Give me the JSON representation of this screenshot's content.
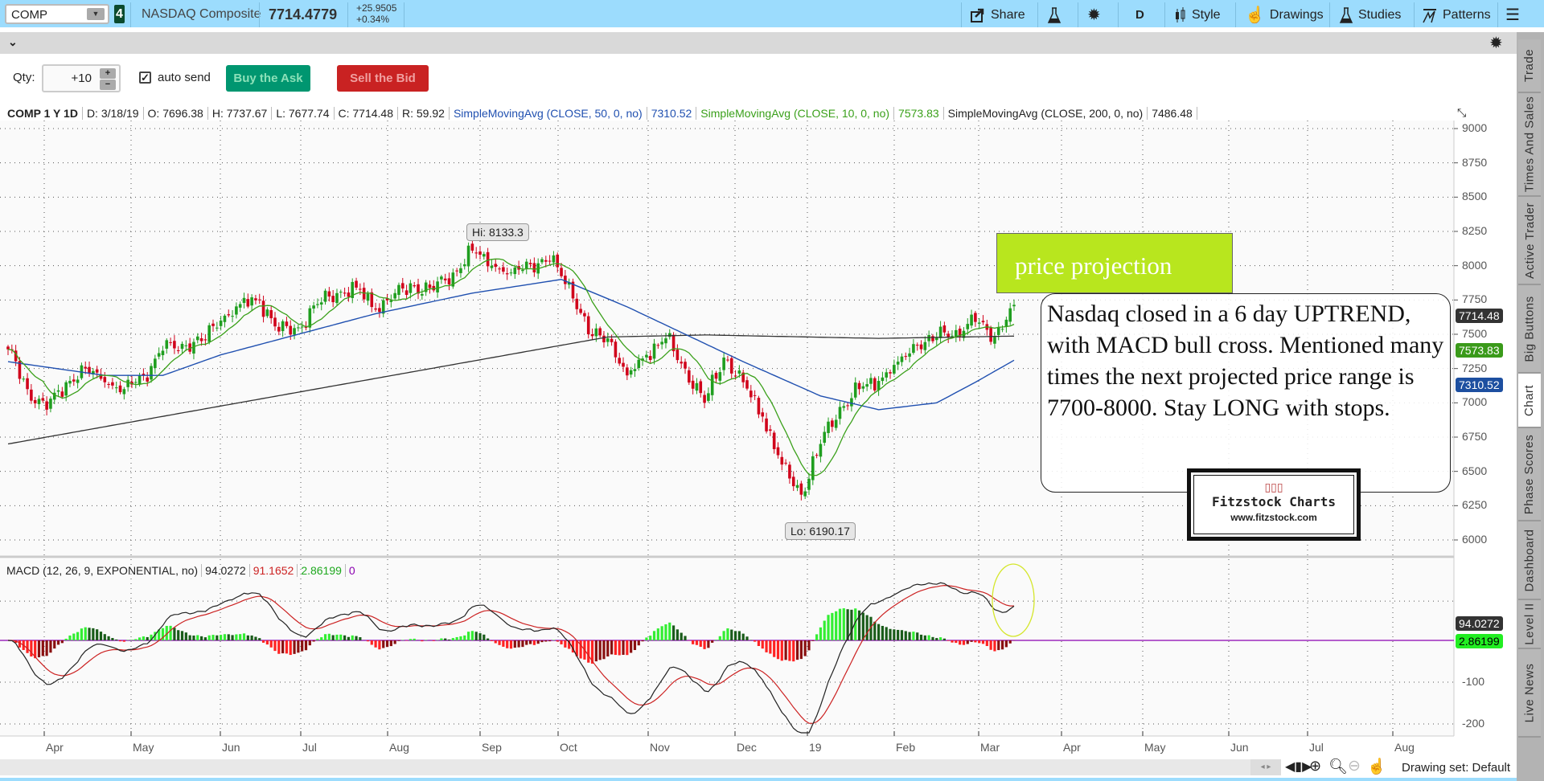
{
  "topbar": {
    "symbol": "COMP",
    "link_badge": "4",
    "name": "NASDAQ Composite",
    "last": "7714.4779",
    "change": "+25.9505",
    "change_pct": "+0.34%",
    "share": "Share",
    "timeframe": "D",
    "style": "Style",
    "drawings": "Drawings",
    "studies": "Studies",
    "patterns": "Patterns"
  },
  "order": {
    "qty_label": "Qty:",
    "qty_value": "+10",
    "auto_send_label": "auto send",
    "auto_send_checked": true,
    "buy": "Buy the Ask",
    "sell": "Sell the Bid"
  },
  "sidebar": {
    "tabs": [
      "Trade",
      "Times And Sales",
      "Active Trader",
      "Big Buttons",
      "Chart",
      "Phase Scores",
      "Dashboard",
      "Level II",
      "Live News"
    ],
    "active": "Chart"
  },
  "header": {
    "title": "COMP 1 Y 1D",
    "date": "D: 3/18/19",
    "open": "O: 7696.38",
    "high": "H: 7737.67",
    "low": "L: 7677.74",
    "close": "C: 7714.48",
    "range": "R: 59.92",
    "sma50_label": "SimpleMovingAvg (CLOSE, 50, 0, no)",
    "sma50_value": "7310.52",
    "sma10_label": "SimpleMovingAvg (CLOSE, 10, 0, no)",
    "sma10_value": "7573.83",
    "sma200_label": "SimpleMovingAvg (CLOSE, 200, 0, no)",
    "sma200_value": "7486.48"
  },
  "price_tags": {
    "last": "7714.48",
    "sma10": "7573.83",
    "sma50": "7310.52"
  },
  "hi_label": "Hi: 8133.3",
  "lo_label": "Lo: 6190.17",
  "macd_header": {
    "label": "MACD (12, 26, 9, EXPONENTIAL, no)",
    "value": "94.0272",
    "avg": "91.1652",
    "diff": "2.86199",
    "zero": "0"
  },
  "macd_tags": {
    "value": "94.0272",
    "diff": "2.86199"
  },
  "annotations": {
    "projection": "price projection",
    "note": "Nasdaq closed in a 6 day UPTREND, with MACD bull cross.  Mentioned many times the next projected price range is 7700-8000. Stay LONG with stops.",
    "logo_title": "Fitzstock Charts",
    "logo_url": "www.fitzstock.com"
  },
  "bottom": {
    "drawing_set": "Drawing set: Default"
  },
  "colors": {
    "up": "#1f9e1f",
    "down": "#d0021b",
    "sma50": "#2050b0",
    "sma10": "#3aa01a",
    "sma200": "#333333",
    "macd": "#222222",
    "signal": "#cc2222",
    "zero": "#8a00b0",
    "topbar": "#9cdcfd"
  },
  "chart_data": {
    "type": "candlestick",
    "title": "COMP 1 Y 1D",
    "price_axis": {
      "ticks": [
        9000,
        8750,
        8500,
        8250,
        8000,
        7750,
        7500,
        7250,
        7000,
        6750,
        6500,
        6250,
        6000
      ],
      "range": [
        5900,
        9150
      ]
    },
    "x_ticks": [
      "Apr",
      "May",
      "Jun",
      "Jul",
      "Aug",
      "Sep",
      "Oct",
      "Nov",
      "Dec",
      "19",
      "Feb",
      "Mar",
      "Apr",
      "May",
      "Jun",
      "Jul",
      "Aug"
    ],
    "weekly_close": [
      7390,
      7100,
      6950,
      7150,
      7250,
      7150,
      7100,
      7200,
      7380,
      7430,
      7450,
      7600,
      7720,
      7750,
      7520,
      7550,
      7720,
      7800,
      7840,
      7680,
      7800,
      7850,
      7820,
      7950,
      8110,
      8000,
      7950,
      8010,
      8030,
      7880,
      7500,
      7470,
      7200,
      7350,
      7470,
      7250,
      7000,
      7330,
      7150,
      6900,
      6550,
      6330,
      6700,
      6970,
      7100,
      7160,
      7300,
      7420,
      7480,
      7530,
      7590,
      7480,
      7714.48
    ],
    "sma50_by_week": [
      [
        0,
        7300
      ],
      [
        5,
        7200
      ],
      [
        8,
        7200
      ],
      [
        11,
        7350
      ],
      [
        15,
        7500
      ],
      [
        19,
        7650
      ],
      [
        24,
        7800
      ],
      [
        28.6,
        7900
      ],
      [
        32,
        7700
      ],
      [
        35,
        7500
      ],
      [
        38,
        7300
      ],
      [
        42,
        7050
      ],
      [
        45,
        6950
      ],
      [
        48,
        7000
      ],
      [
        50,
        7150
      ],
      [
        52,
        7310.52
      ]
    ],
    "sma200_by_week": [
      [
        0,
        6700
      ],
      [
        31,
        7480
      ],
      [
        36,
        7495
      ],
      [
        45,
        7470
      ],
      [
        52,
        7486.48
      ]
    ],
    "hi": 8133.3,
    "lo": 6190.17,
    "macd_axis": {
      "ticks": [
        -100,
        -200
      ]
    }
  }
}
